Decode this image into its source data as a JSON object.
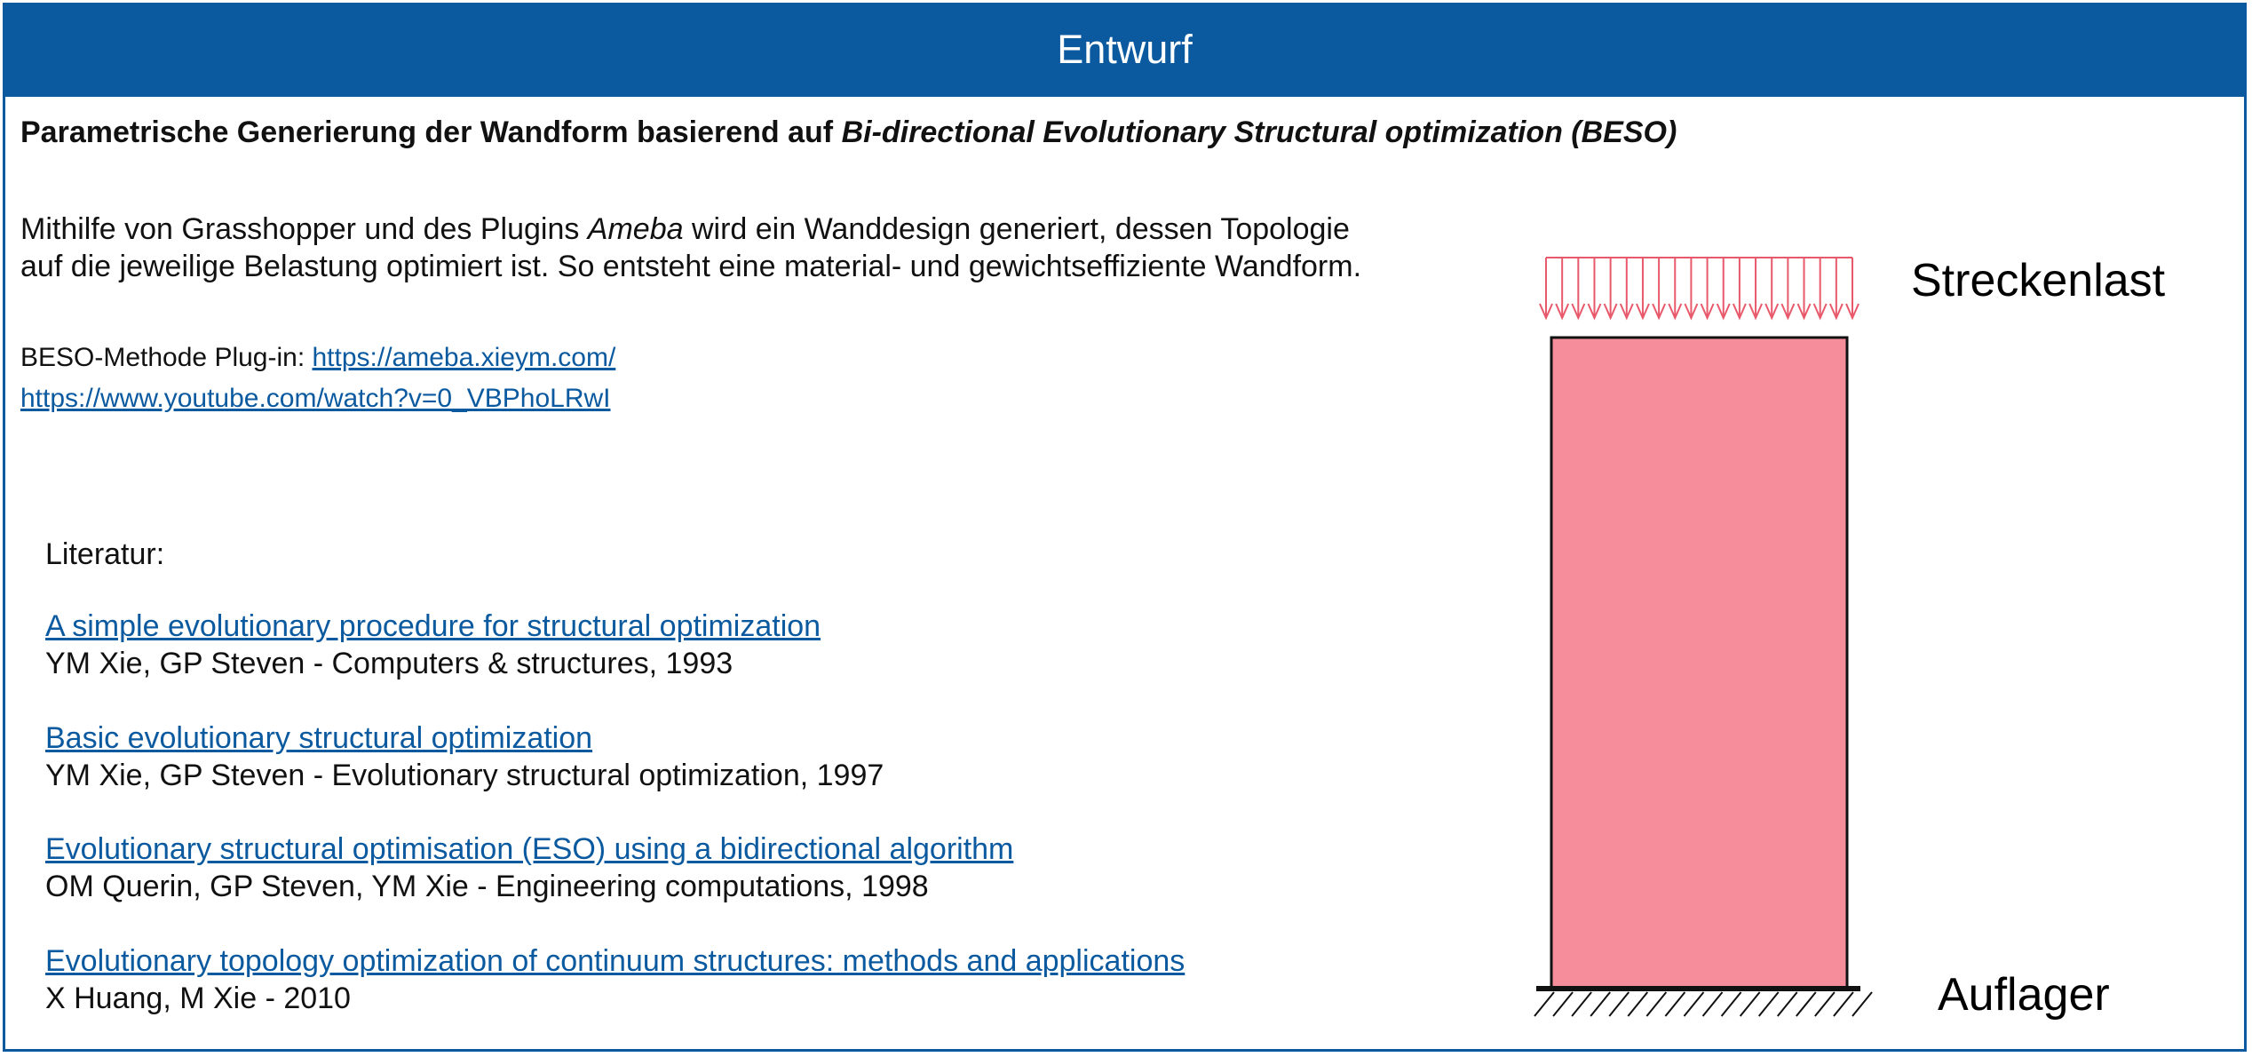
{
  "header": {
    "title": "Entwurf"
  },
  "subtitle": {
    "plain": "Parametrische Generierung der Wandform basierend auf ",
    "italic": "Bi-directional Evolutionary Structural optimization (BESO)"
  },
  "intro": {
    "line1_before": "Mithilfe von Grasshopper und des Plugins ",
    "line1_italic": "Ameba",
    "line1_after": " wird ein Wanddesign generiert, dessen Topologie",
    "line2": "auf die jeweilige Belastung optimiert ist. So entsteht eine material- und gewichtseffiziente Wandform."
  },
  "links": {
    "plugin_label": "BESO-Methode Plug-in: ",
    "plugin_url": "https://ameba.xieym.com/",
    "youtube_url": "https://www.youtube.com/watch?v=0_VBPhoLRwI"
  },
  "literature": {
    "heading": "Literatur:",
    "refs": [
      {
        "title": "A simple evolutionary procedure for structural optimization ",
        "authors": "YM Xie, GP Steven - Computers & structures, 1993"
      },
      {
        "title": "Basic evolutionary structural optimization",
        "authors": "YM Xie, GP Steven - Evolutionary structural optimization, 1997"
      },
      {
        "title": "Evolutionary structural optimisation (ESO) using a bidirectional algorithm ",
        "authors": "OM Querin, GP Steven, YM Xie - Engineering computations, 1998"
      },
      {
        "title": "Evolutionary topology optimization of continuum structures: methods and applications ",
        "authors": "X Huang, M Xie - 2010"
      }
    ]
  },
  "diagram": {
    "load_label": "Streckenlast",
    "support_label": "Auflager",
    "wall_color": "#f68d9a",
    "load_color": "#e8596b"
  },
  "colors": {
    "accent": "#0b5aa0"
  }
}
